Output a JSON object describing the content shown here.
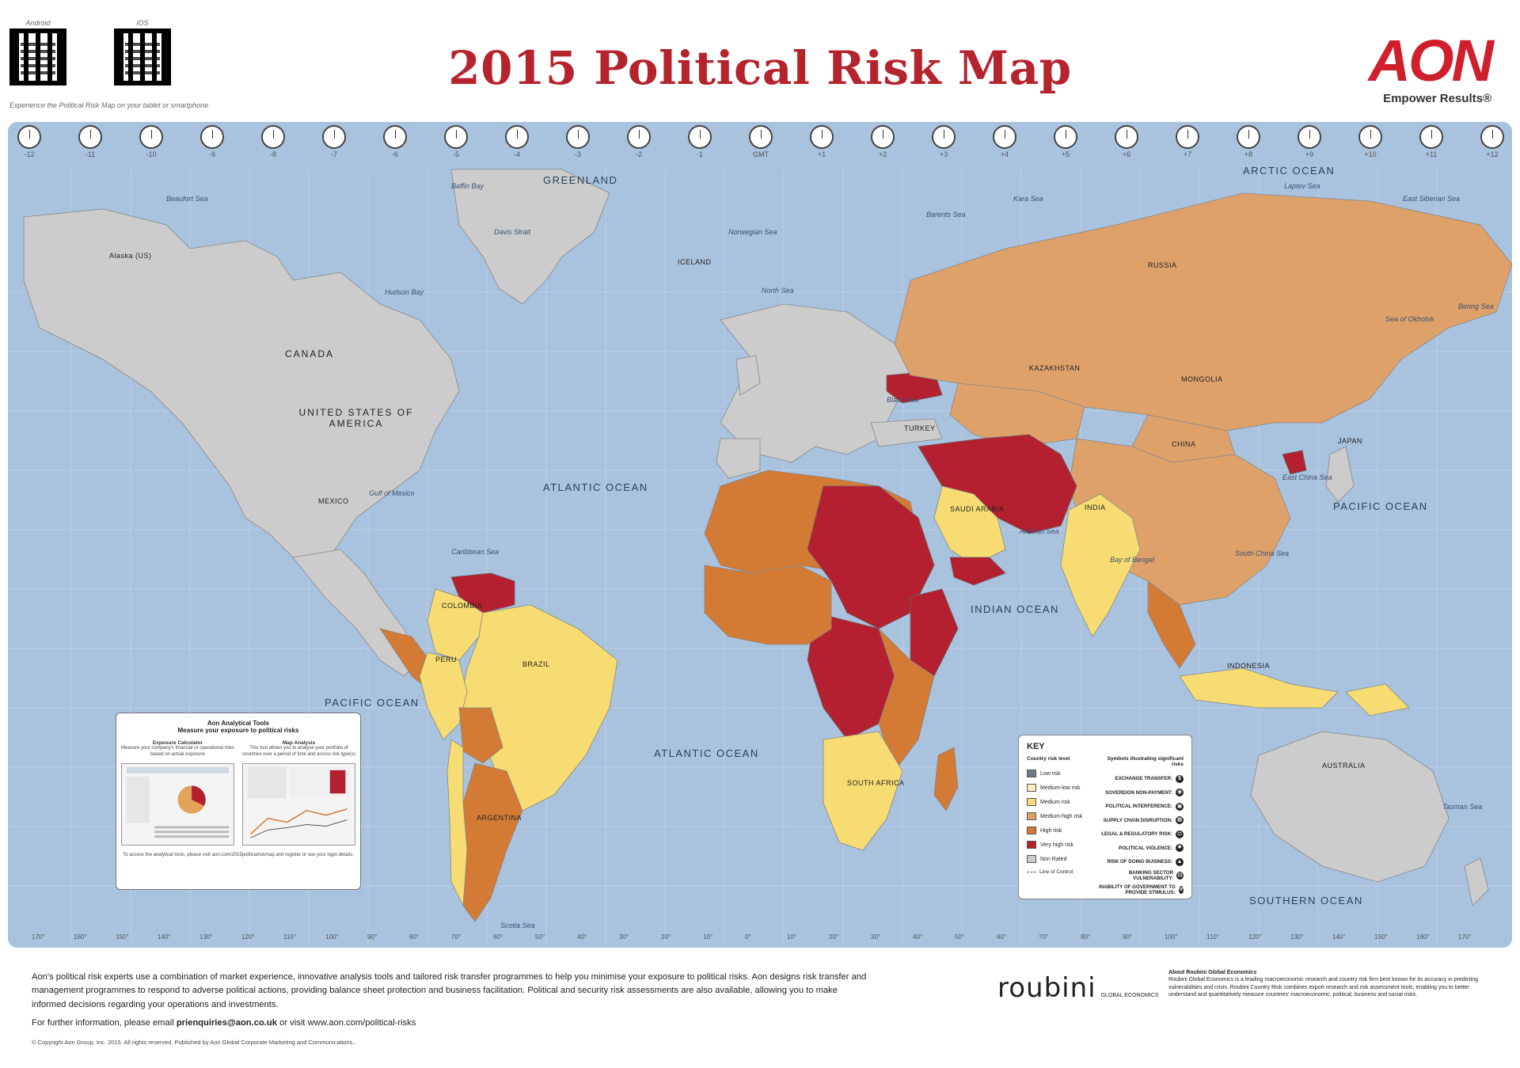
{
  "header": {
    "title": "2015 Political Risk Map",
    "qr": [
      {
        "label": "Android"
      },
      {
        "label": "iOS"
      }
    ],
    "qr_caption": "Experience the Political Risk Map on your tablet or smartphone",
    "brand_logo": "AON",
    "brand_tagline": "Empower Results®"
  },
  "timezones": [
    "-12",
    "-11",
    "-10",
    "-9",
    "-8",
    "-7",
    "-6",
    "-5",
    "-4",
    "-3",
    "-2",
    "-1",
    "GMT",
    "+1",
    "+2",
    "+3",
    "+4",
    "+5",
    "+6",
    "+7",
    "+8",
    "+9",
    "+10",
    "+11",
    "+12"
  ],
  "longitudes": [
    "170°",
    "160°",
    "150°",
    "140°",
    "130°",
    "120°",
    "110°",
    "100°",
    "90°",
    "80°",
    "70°",
    "60°",
    "50°",
    "40°",
    "30°",
    "20°",
    "10°",
    "0°",
    "10°",
    "20°",
    "30°",
    "40°",
    "50°",
    "60°",
    "70°",
    "80°",
    "90°",
    "100°",
    "110°",
    "120°",
    "130°",
    "140°",
    "150°",
    "160°",
    "170°"
  ],
  "oceans": {
    "greenland": "GREENLAND",
    "arctic": "ARCTIC OCEAN",
    "atlantic_n": "ATLANTIC OCEAN",
    "atlantic_s": "ATLANTIC OCEAN",
    "pacific_e": "PACIFIC OCEAN",
    "pacific_w": "PACIFIC OCEAN",
    "indian": "INDIAN OCEAN",
    "southern": "SOUTHERN OCEAN"
  },
  "seas": {
    "beaufort": "Beaufort Sea",
    "baffin": "Baffin Bay",
    "davis": "Davis Strait",
    "hudson": "Hudson Bay",
    "norwegian": "Norwegian Sea",
    "barents": "Barents Sea",
    "kara": "Kara Sea",
    "laptev": "Laptev Sea",
    "east_siberian": "East Siberian Sea",
    "bering": "Bering Sea",
    "okhotsk": "Sea of Okhotsk",
    "north_sea": "North Sea",
    "black_sea": "Black Sea",
    "caribbean": "Caribbean Sea",
    "gulf_mexico": "Gulf of Mexico",
    "arabian": "Arabian Sea",
    "bengal": "Bay of Bengal",
    "south_china": "South China Sea",
    "east_china": "East China Sea",
    "tasman": "Tasman Sea",
    "scotia": "Scotia Sea"
  },
  "countries": {
    "canada": "CANADA",
    "usa": "UNITED STATES OF AMERICA",
    "alaska": "Alaska (US)",
    "mexico": "MEXICO",
    "russia": "RUSSIA",
    "china": "CHINA",
    "india": "INDIA",
    "brazil": "BRAZIL",
    "argentina": "ARGENTINA",
    "australia": "AUSTRALIA",
    "kazakhstan": "KAZAKHSTAN",
    "mongolia": "MONGOLIA",
    "south_africa": "SOUTH AFRICA",
    "saudi": "SAUDI ARABIA",
    "peru": "PERU",
    "colombia": "COLOMBIA",
    "indonesia": "INDONESIA",
    "iceland": "ICELAND",
    "turkey": "TURKEY",
    "japan": "JAPAN"
  },
  "risk_colors": {
    "low": "#6f7a86",
    "medium_low": "#fbf0bc",
    "medium": "#f6dc72",
    "medium_high": "#dea16a",
    "high": "#d37a35",
    "very_high": "#b52030",
    "not_rated": "#cccccc",
    "ocean": "#a9c2de"
  },
  "key": {
    "title": "KEY",
    "levels_header": "Country risk level",
    "levels": [
      {
        "label": "Low risk",
        "color": "#6f7a86"
      },
      {
        "label": "Medium-low risk",
        "color": "#fbf0bc"
      },
      {
        "label": "Medium risk",
        "color": "#f6dc72"
      },
      {
        "label": "Medium-high risk",
        "color": "#dea16a"
      },
      {
        "label": "High risk",
        "color": "#d37a35"
      },
      {
        "label": "Very high risk",
        "color": "#b52030"
      },
      {
        "label": "Non Rated",
        "color": "#cccccc"
      }
    ],
    "line_of_control": "Line of Control",
    "symbols_header": "Symbols illustrating significant risks",
    "symbols": [
      {
        "label": "EXCHANGE TRANSFER:",
        "icon": "exchange-transfer-icon"
      },
      {
        "label": "SOVEREIGN NON-PAYMENT:",
        "icon": "sovereign-nonpayment-icon"
      },
      {
        "label": "POLITICAL INTERFERENCE:",
        "icon": "political-interference-icon"
      },
      {
        "label": "SUPPLY CHAIN DISRUPTION:",
        "icon": "supply-chain-icon"
      },
      {
        "label": "LEGAL & REGULATORY RISK:",
        "icon": "legal-regulatory-icon"
      },
      {
        "label": "POLITICAL VIOLENCE:",
        "icon": "political-violence-icon"
      },
      {
        "label": "RISK OF DOING BUSINESS:",
        "icon": "doing-business-icon"
      },
      {
        "label": "BANKING SECTOR VULNERABILITY:",
        "icon": "banking-sector-icon"
      },
      {
        "label": "INABILITY OF GOVERNMENT TO PROVIDE STIMULUS:",
        "icon": "government-stimulus-icon"
      }
    ]
  },
  "tools": {
    "title": "Aon Analytical Tools",
    "subtitle": "Measure your exposure to political risks",
    "col1_head": "Exposure Calculator",
    "col1_text": "Measure your company's financial or operational risks based on actual exposure",
    "col2_head": "Map Analysis",
    "col2_text": "This tool allows you to analyse your portfolio of countries over a period of time and across risk type(s)",
    "footer": "To access the analytical tools, please visit aon.com/2015politicalriskmap and register or use your login details."
  },
  "footer": {
    "paragraph": "Aon's political risk experts use a combination of market experience, innovative analysis tools and tailored risk transfer programmes to help you minimise your exposure to political risks. Aon designs risk transfer and management programmes to respond to adverse political actions, providing balance sheet protection and business facilitation. Political and security risk assessments are also available, allowing you to make informed decisions regarding your operations and investments.",
    "contact_prefix": "For further information, please email",
    "email": "prienquiries@aon.co.uk",
    "contact_mid": "or visit",
    "url": "www.aon.com/political-risks",
    "copyright": "© Copyright Aon Group, Inc. 2015. All rights reserved. Published by Aon Global Corporate Marketing and Communications..",
    "roubini_word": "roubini",
    "roubini_small": "GLOBAL ECONOMICS",
    "about_head": "About Roubini Global Economics",
    "about_text": "Roubini Global Economics is a leading macroeconomic research and country risk firm best known for its accuracy in predicting vulnerabilities and crisis. Roubini Country Risk combines export research and risk assessment tools, enabling you to better understand and quantitatively measure countries' macroeconomic, political, business and social risks."
  }
}
